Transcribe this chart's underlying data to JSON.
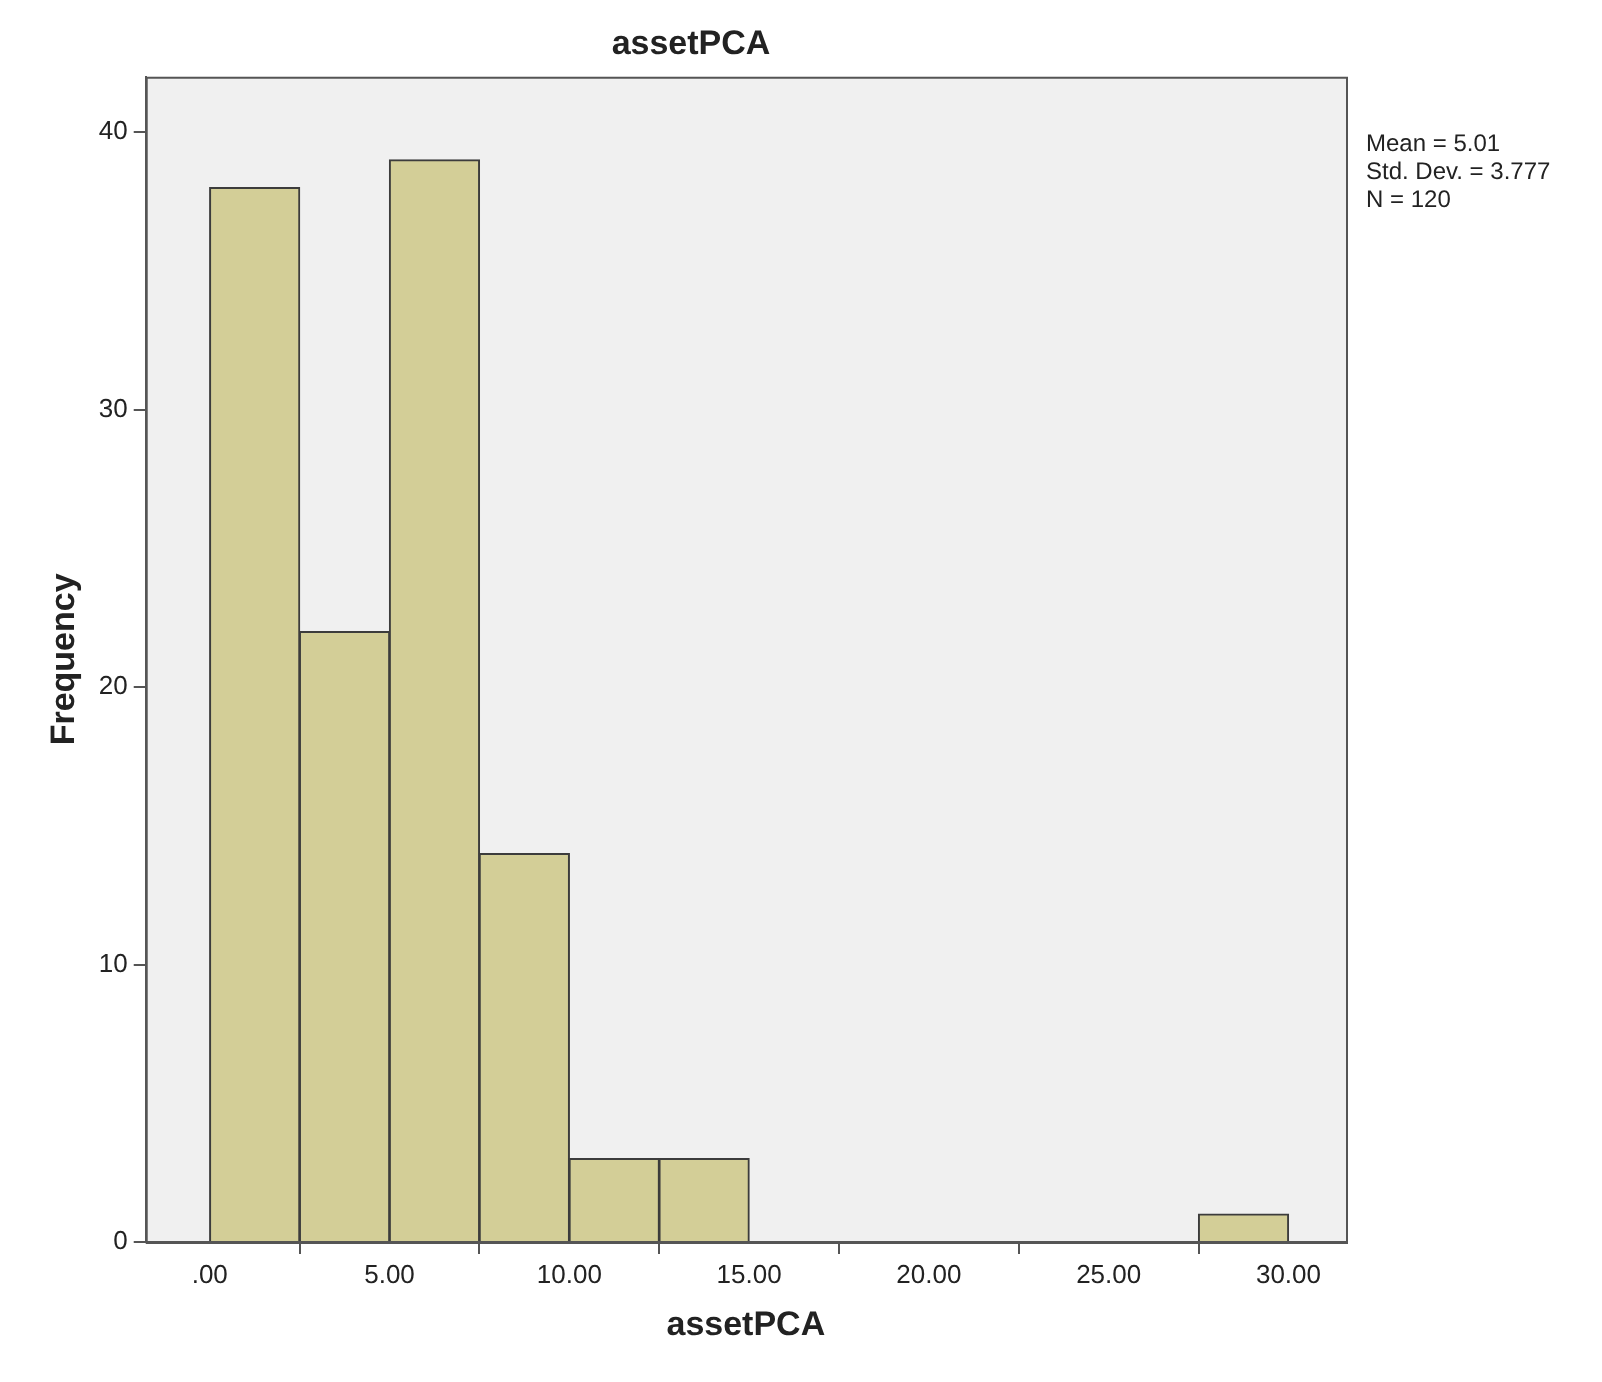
{
  "chart_data": {
    "type": "histogram",
    "title": "assetPCA",
    "xlabel": "assetPCA",
    "ylabel": "Frequency",
    "bins": [
      0,
      2.5,
      5,
      7.5,
      10,
      12.5,
      15,
      17.5,
      20,
      22.5,
      25,
      27.5,
      30
    ],
    "values": [
      38,
      22,
      39,
      14,
      3,
      3,
      0,
      0,
      0,
      0,
      0,
      1
    ],
    "color": "#d3ce97",
    "xlim": [
      -1.78,
      31.6
    ],
    "xticks": [
      {
        "value": 0,
        "label": ".00"
      },
      {
        "value": 5,
        "label": "5.00"
      },
      {
        "value": 10,
        "label": "10.00"
      },
      {
        "value": 15,
        "label": "15.00"
      },
      {
        "value": 20,
        "label": "20.00"
      },
      {
        "value": 25,
        "label": "25.00"
      },
      {
        "value": 30,
        "label": "30.00"
      }
    ],
    "ylim": [
      0,
      42
    ],
    "yticks": [
      0,
      10,
      20,
      30,
      40
    ],
    "annotations": [
      "Mean = 5.01",
      "Std. Dev. = 3.777",
      "N = 120"
    ],
    "grid": false,
    "legend": false
  }
}
